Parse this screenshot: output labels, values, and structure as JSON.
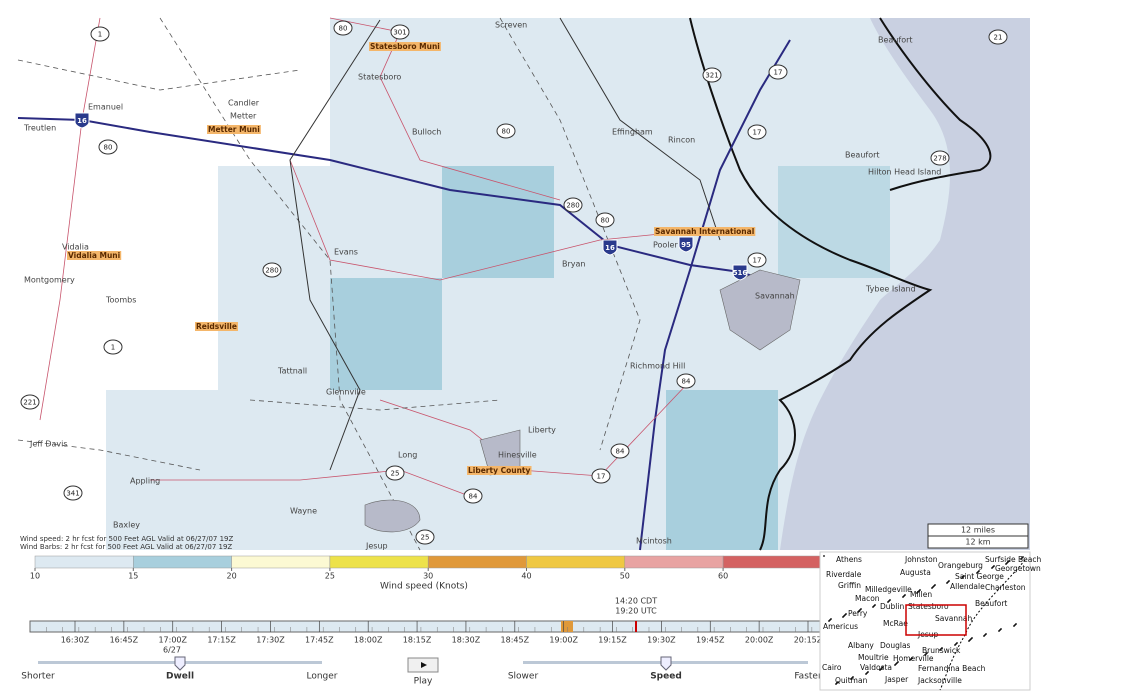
{
  "map": {
    "places": [
      "Screven",
      "Statesboro",
      "Bulloch",
      "Effingham",
      "Rincon",
      "Beaufort",
      "Beaufort",
      "Hilton Head Island",
      "Candler",
      "Metter",
      "Emanuel",
      "Treutlen",
      "Vidalia",
      "Montgomery",
      "Toombs",
      "Tattnall",
      "Glennville",
      "Evans",
      "Bryan",
      "Pooler",
      "Savannah",
      "Tybee Island",
      "Richmond Hill",
      "Liberty",
      "Hinesville",
      "Long",
      "Wayne",
      "Jesup",
      "Mcintosh",
      "Appling",
      "Jeff Davis",
      "Baxley"
    ],
    "airports": [
      "Statesboro Muni",
      "Metter Muni",
      "Vidalia Muni",
      "Reidsville",
      "Savannah International",
      "Liberty County"
    ],
    "interstates": [
      "16",
      "16",
      "95",
      "516"
    ],
    "routes": [
      "1",
      "301",
      "80",
      "80",
      "280",
      "80",
      "321",
      "17",
      "17",
      "280",
      "80",
      "17",
      "278",
      "21",
      "1",
      "84",
      "84",
      "17",
      "25",
      "84",
      "25",
      "341",
      "221"
    ],
    "captions": [
      "Wind speed: 2 hr fcst for 500 Feet AGL Valid at 06/27/07 19Z",
      "Wind Barbs: 2 hr fcst for 500 Feet AGL Valid at 06/27/07 19Z"
    ],
    "scale": [
      "12 miles",
      "12 km"
    ]
  },
  "legend": {
    "title": "Wind speed (Knots)",
    "ticks": [
      10,
      15,
      20,
      25,
      30,
      40,
      50,
      60
    ],
    "colors": [
      "#dde9f1",
      "#a8cfdd",
      "#fcf9d3",
      "#ede24a",
      "#e0993a",
      "#efc843",
      "#e8a3a2",
      "#d46262"
    ]
  },
  "timeline": {
    "ticks": [
      "16:30Z",
      "16:45Z",
      "17:00Z",
      "17:15Z",
      "17:30Z",
      "17:45Z",
      "18:00Z",
      "18:15Z",
      "18:30Z",
      "18:45Z",
      "19:00Z",
      "19:15Z",
      "19:30Z",
      "19:45Z",
      "20:00Z",
      "20:15Z"
    ],
    "local_time": "14:20 CDT",
    "utc_time": "19:20 UTC",
    "date": "6/27"
  },
  "controls": {
    "dwell": {
      "min_label": "Shorter",
      "label": "Dwell",
      "max_label": "Longer"
    },
    "play": "Play",
    "speed": {
      "min_label": "Slower",
      "label": "Speed",
      "max_label": "Faster"
    }
  },
  "inset": {
    "cities": [
      "Athens",
      "Johnston",
      "Surfside Beach",
      "Riverdale",
      "Augusta",
      "Orangeburg",
      "Georgetown",
      "Griffin",
      "Saint George",
      "Milledgeville",
      "Allendale",
      "Charleston",
      "Macon",
      "Millen",
      "Dublin",
      "Statesboro",
      "Beaufort",
      "Perry",
      "McRae",
      "Savannah",
      "Americus",
      "Jesup",
      "Albany",
      "Douglas",
      "Brunswick",
      "Moultrie",
      "Homerville",
      "Cairo",
      "Valdosta",
      "Fernandina Beach",
      "Quitman",
      "Jasper",
      "Jacksonville"
    ]
  }
}
